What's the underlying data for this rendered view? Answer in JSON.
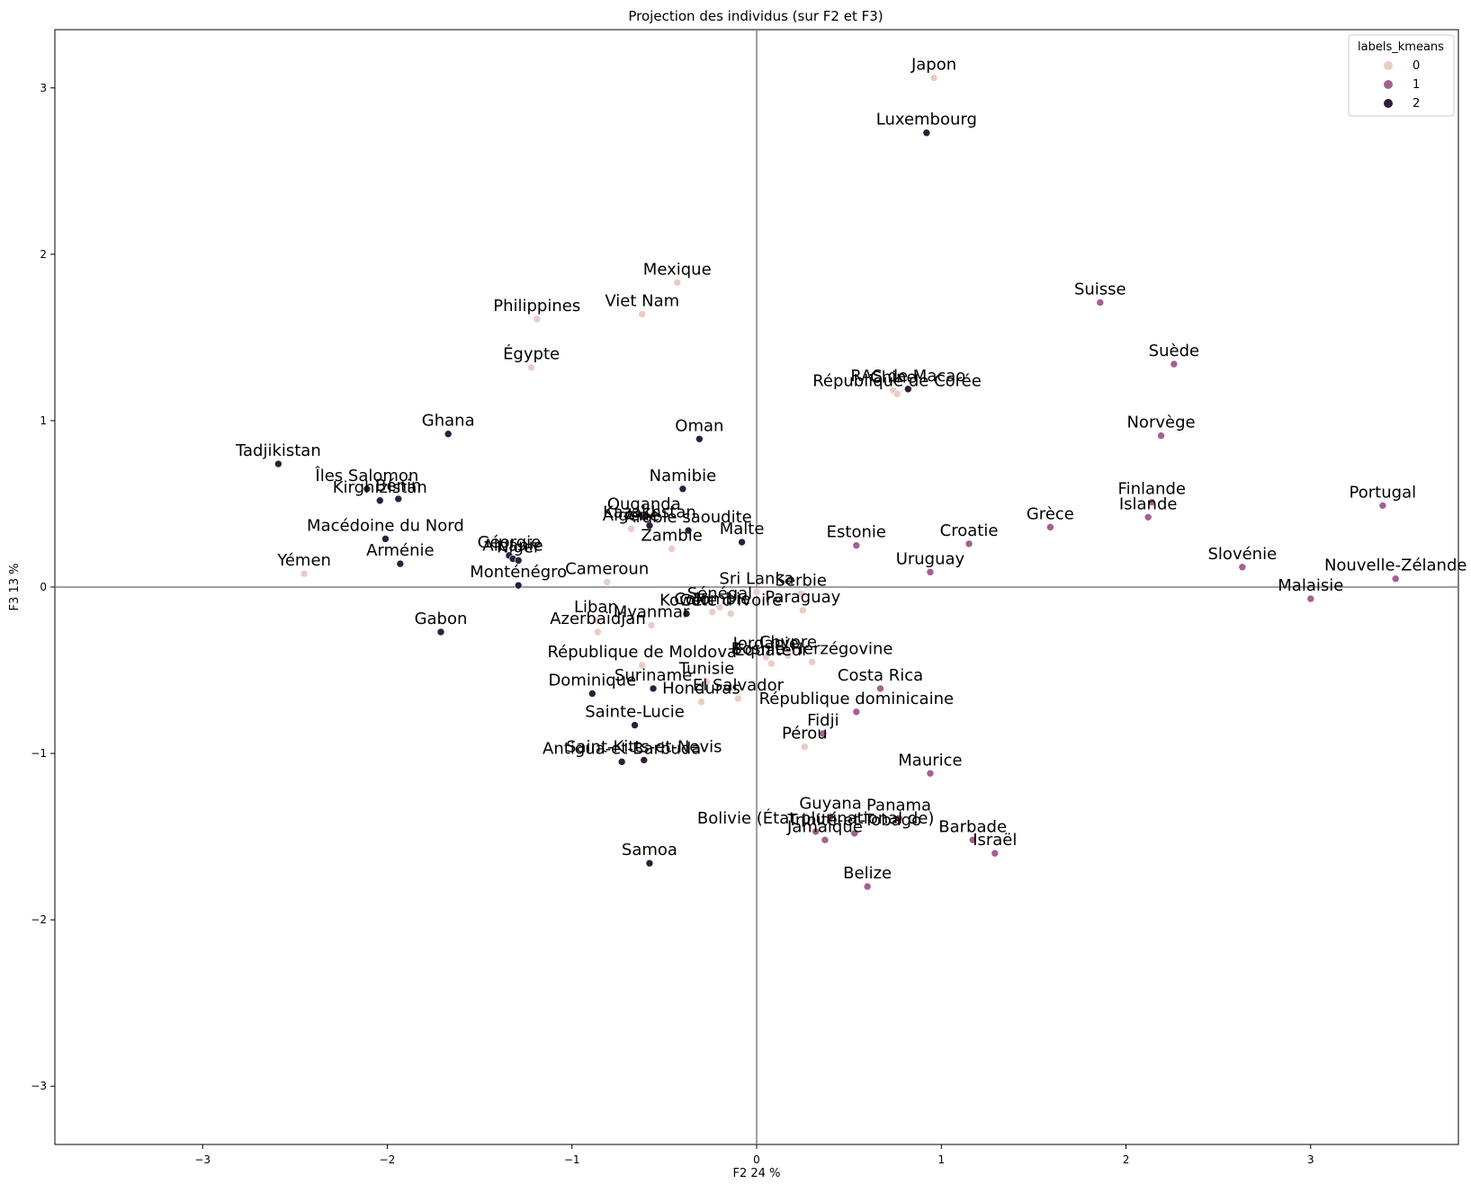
{
  "chart_data": {
    "type": "scatter",
    "title": "Projection des individus (sur F2 et F3)",
    "xlabel": "F2 24 %",
    "ylabel": "F3 13 %",
    "xlim": [
      -3.8,
      3.8
    ],
    "ylim": [
      -3.35,
      3.35
    ],
    "xticks": [
      -3,
      -2,
      -1,
      0,
      1,
      2,
      3
    ],
    "yticks": [
      -3,
      -2,
      -1,
      0,
      1,
      2,
      3
    ],
    "xtick_labels": [
      "−3",
      "−2",
      "−1",
      "0",
      "1",
      "2",
      "3"
    ],
    "ytick_labels": [
      "−3",
      "−2",
      "−1",
      "0",
      "1",
      "2",
      "3"
    ],
    "reference_lines": {
      "x": 0,
      "y": 0
    },
    "legend": {
      "title": "labels_kmeans",
      "position": "top-right",
      "entries": [
        {
          "label": "0",
          "color": "#ebcbc6"
        },
        {
          "label": "1",
          "color": "#a4608e"
        },
        {
          "label": "2",
          "color": "#2e1e3b"
        }
      ]
    },
    "colors": {
      "0": "#ebcbc6",
      "1": "#a4608e",
      "2": "#2e1e3b",
      "refline": "#808080"
    },
    "points": [
      {
        "label": "Japon",
        "x": 0.96,
        "y": 3.06,
        "cluster": 0
      },
      {
        "label": "Luxembourg",
        "x": 0.92,
        "y": 2.73,
        "cluster": 2
      },
      {
        "label": "Mexique",
        "x": -0.43,
        "y": 1.83,
        "cluster": 0
      },
      {
        "label": "Philippines",
        "x": -1.19,
        "y": 1.61,
        "cluster": 0
      },
      {
        "label": "Viet Nam",
        "x": -0.62,
        "y": 1.64,
        "cluster": 0
      },
      {
        "label": "Égypte",
        "x": -1.22,
        "y": 1.32,
        "cluster": 0
      },
      {
        "label": "Suisse",
        "x": 1.86,
        "y": 1.71,
        "cluster": 1
      },
      {
        "label": "Suède",
        "x": 2.26,
        "y": 1.34,
        "cluster": 1
      },
      {
        "label": "Chine",
        "x": 0.74,
        "y": 1.18,
        "cluster": 0
      },
      {
        "label": "RAS de Macao",
        "x": 0.82,
        "y": 1.19,
        "cluster": 2
      },
      {
        "label": "République de Corée",
        "x": 0.76,
        "y": 1.16,
        "cluster": 0
      },
      {
        "label": "Ghana",
        "x": -1.67,
        "y": 0.92,
        "cluster": 2
      },
      {
        "label": "Oman",
        "x": -0.31,
        "y": 0.89,
        "cluster": 2
      },
      {
        "label": "Norvège",
        "x": 2.19,
        "y": 0.91,
        "cluster": 1
      },
      {
        "label": "Tadjikistan",
        "x": -2.59,
        "y": 0.74,
        "cluster": 2
      },
      {
        "label": "Îles Salomon",
        "x": -2.11,
        "y": 0.59,
        "cluster": 2
      },
      {
        "label": "Kirghizistan",
        "x": -2.04,
        "y": 0.52,
        "cluster": 2
      },
      {
        "label": "Bénin",
        "x": -1.94,
        "y": 0.53,
        "cluster": 2
      },
      {
        "label": "Namibie",
        "x": -0.4,
        "y": 0.59,
        "cluster": 2
      },
      {
        "label": "Finlande",
        "x": 2.14,
        "y": 0.51,
        "cluster": 1
      },
      {
        "label": "Islande",
        "x": 2.12,
        "y": 0.42,
        "cluster": 1
      },
      {
        "label": "Portugal",
        "x": 3.39,
        "y": 0.49,
        "cluster": 1
      },
      {
        "label": "Ouganda",
        "x": -0.61,
        "y": 0.42,
        "cluster": 2
      },
      {
        "label": "Kazakhstan",
        "x": -0.58,
        "y": 0.37,
        "cluster": 2
      },
      {
        "label": "Algérie",
        "x": -0.68,
        "y": 0.35,
        "cluster": 0
      },
      {
        "label": "Arabie saoudite",
        "x": -0.37,
        "y": 0.34,
        "cluster": 2
      },
      {
        "label": "Grèce",
        "x": 1.59,
        "y": 0.36,
        "cluster": 1
      },
      {
        "label": "Macédoine du Nord",
        "x": -2.01,
        "y": 0.29,
        "cluster": 2
      },
      {
        "label": "Estonie",
        "x": 0.54,
        "y": 0.25,
        "cluster": 1
      },
      {
        "label": "Croatie",
        "x": 1.15,
        "y": 0.26,
        "cluster": 1
      },
      {
        "label": "Malte",
        "x": -0.08,
        "y": 0.27,
        "cluster": 2
      },
      {
        "label": "Zambie",
        "x": -0.46,
        "y": 0.23,
        "cluster": 0
      },
      {
        "label": "Géorgie",
        "x": -1.34,
        "y": 0.19,
        "cluster": 2
      },
      {
        "label": "Albanie",
        "x": -1.32,
        "y": 0.17,
        "cluster": 2
      },
      {
        "label": "Niger",
        "x": -1.29,
        "y": 0.16,
        "cluster": 2
      },
      {
        "label": "Arménie",
        "x": -1.93,
        "y": 0.14,
        "cluster": 2
      },
      {
        "label": "Uruguay",
        "x": 0.94,
        "y": 0.09,
        "cluster": 1
      },
      {
        "label": "Slovénie",
        "x": 2.63,
        "y": 0.12,
        "cluster": 1
      },
      {
        "label": "Yémen",
        "x": -2.45,
        "y": 0.08,
        "cluster": 0
      },
      {
        "label": "Cameroun",
        "x": -0.81,
        "y": 0.03,
        "cluster": 0
      },
      {
        "label": "Monténégro",
        "x": -1.29,
        "y": 0.01,
        "cluster": 2
      },
      {
        "label": "Nouvelle-Zélande",
        "x": 3.46,
        "y": 0.05,
        "cluster": 1
      },
      {
        "label": "Sri Lanka",
        "x": 0.0,
        "y": -0.03,
        "cluster": 0
      },
      {
        "label": "Serbie",
        "x": 0.24,
        "y": -0.04,
        "cluster": 0
      },
      {
        "label": "Malaisie",
        "x": 3.0,
        "y": -0.07,
        "cluster": 1
      },
      {
        "label": "Sénégal",
        "x": -0.2,
        "y": -0.12,
        "cluster": 0
      },
      {
        "label": "Paraguay",
        "x": 0.25,
        "y": -0.14,
        "cluster": 0
      },
      {
        "label": "Koweït",
        "x": -0.38,
        "y": -0.16,
        "cluster": 2
      },
      {
        "label": "Colombie",
        "x": -0.24,
        "y": -0.15,
        "cluster": 0
      },
      {
        "label": "Côte d'Ivoire",
        "x": -0.14,
        "y": -0.16,
        "cluster": 0
      },
      {
        "label": "Liban",
        "x": -0.87,
        "y": -0.2,
        "cluster": 0
      },
      {
        "label": "Myanmar",
        "x": -0.57,
        "y": -0.23,
        "cluster": 0
      },
      {
        "label": "Azerbaïdjan",
        "x": -0.86,
        "y": -0.27,
        "cluster": 0
      },
      {
        "label": "Gabon",
        "x": -1.71,
        "y": -0.27,
        "cluster": 2
      },
      {
        "label": "Jordanie",
        "x": 0.05,
        "y": -0.42,
        "cluster": 0
      },
      {
        "label": "Chypre",
        "x": 0.17,
        "y": -0.41,
        "cluster": 0
      },
      {
        "label": "Bosnie-Herzégovine",
        "x": 0.3,
        "y": -0.45,
        "cluster": 0
      },
      {
        "label": "Équateur",
        "x": 0.08,
        "y": -0.46,
        "cluster": 0
      },
      {
        "label": "République de Moldova",
        "x": -0.62,
        "y": -0.47,
        "cluster": 0
      },
      {
        "label": "Tunisie",
        "x": -0.27,
        "y": -0.57,
        "cluster": 0
      },
      {
        "label": "Costa Rica",
        "x": 0.67,
        "y": -0.61,
        "cluster": 1
      },
      {
        "label": "Suriname",
        "x": -0.56,
        "y": -0.61,
        "cluster": 2
      },
      {
        "label": "Dominique",
        "x": -0.89,
        "y": -0.64,
        "cluster": 2
      },
      {
        "label": "El Salvador",
        "x": -0.1,
        "y": -0.67,
        "cluster": 0
      },
      {
        "label": "Honduras",
        "x": -0.3,
        "y": -0.69,
        "cluster": 0
      },
      {
        "label": "République dominicaine",
        "x": 0.54,
        "y": -0.75,
        "cluster": 1
      },
      {
        "label": "Sainte-Lucie",
        "x": -0.66,
        "y": -0.83,
        "cluster": 2
      },
      {
        "label": "Fidji",
        "x": 0.36,
        "y": -0.88,
        "cluster": 1
      },
      {
        "label": "Pérou",
        "x": 0.26,
        "y": -0.96,
        "cluster": 0
      },
      {
        "label": "Saint-Kitts-et-Nevis",
        "x": -0.61,
        "y": -1.04,
        "cluster": 2
      },
      {
        "label": "Antigua-et-Barbuda",
        "x": -0.73,
        "y": -1.05,
        "cluster": 2
      },
      {
        "label": "Maurice",
        "x": 0.94,
        "y": -1.12,
        "cluster": 1
      },
      {
        "label": "Guyana",
        "x": 0.4,
        "y": -1.38,
        "cluster": 1
      },
      {
        "label": "Panama",
        "x": 0.77,
        "y": -1.39,
        "cluster": 1
      },
      {
        "label": "Bolivie (État plurinational de)",
        "x": 0.32,
        "y": -1.47,
        "cluster": 1
      },
      {
        "label": "Trinité-et-Tobago",
        "x": 0.53,
        "y": -1.48,
        "cluster": 1
      },
      {
        "label": "Jamaïque",
        "x": 0.37,
        "y": -1.52,
        "cluster": 1
      },
      {
        "label": "Barbade",
        "x": 1.17,
        "y": -1.52,
        "cluster": 1
      },
      {
        "label": "Israël",
        "x": 1.29,
        "y": -1.6,
        "cluster": 1
      },
      {
        "label": "Samoa",
        "x": -0.58,
        "y": -1.66,
        "cluster": 2
      },
      {
        "label": "Belize",
        "x": 0.6,
        "y": -1.8,
        "cluster": 1
      }
    ]
  }
}
